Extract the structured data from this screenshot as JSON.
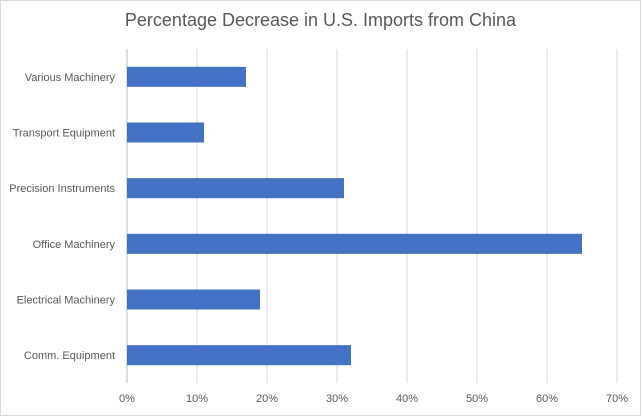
{
  "chart_data": {
    "type": "bar",
    "orientation": "horizontal",
    "title": "Percentage Decrease in U.S. Imports from China",
    "categories": [
      "Various Machinery",
      "Transport Equipment",
      "Precision Instruments",
      "Office Machinery",
      "Electrical Machinery",
      "Comm. Equipment"
    ],
    "values": [
      17,
      11,
      31,
      65,
      19,
      32
    ],
    "xlim": [
      0,
      70
    ],
    "x_ticks": [
      "0%",
      "10%",
      "20%",
      "30%",
      "40%",
      "50%",
      "60%",
      "70%"
    ],
    "grid": true,
    "bar_color": "#4472c4"
  }
}
